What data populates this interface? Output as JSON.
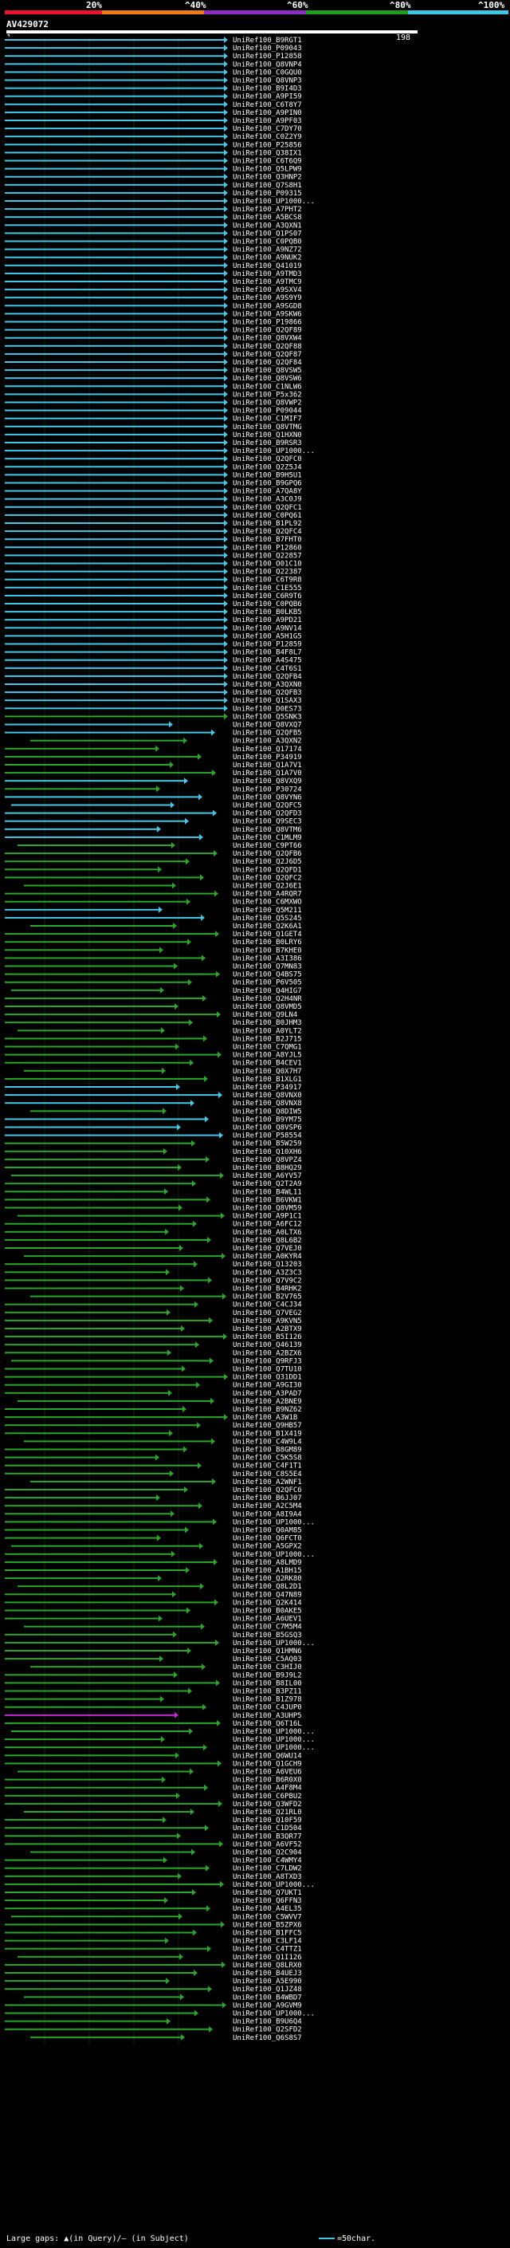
{
  "scale": {
    "labels": [
      "20%",
      "^40%",
      "^60%",
      "^80%",
      "^100%"
    ],
    "colors": [
      "#e8152b",
      "#ee7d16",
      "#8c2ec4",
      "#1ea01e",
      "#3cc8e6"
    ]
  },
  "query": {
    "title": "AV429072",
    "start": "1",
    "end": "198"
  },
  "colors": {
    "blue": "#44c8e8",
    "green": "#2aa62a",
    "magenta": "#c02cd0",
    "bg_band": "#1a1a6e"
  },
  "legend": {
    "left_text": "Large gaps: ▲(in Query)/– (in Subject)",
    "right_text": "=50char."
  },
  "hits": [
    {
      "label": "UniRef100_B9RGT1",
      "c": "b"
    },
    {
      "label": "UniRef100_P09043",
      "c": "b"
    },
    {
      "label": "UniRef100_P12858",
      "c": "b"
    },
    {
      "label": "UniRef100_Q8VNP4",
      "c": "b"
    },
    {
      "label": "UniRef100_C0GQU0",
      "c": "b"
    },
    {
      "label": "UniRef100_Q8VNP3",
      "c": "b"
    },
    {
      "label": "UniRef100_B9I4D3",
      "c": "b"
    },
    {
      "label": "UniRef100_A9PI59",
      "c": "b"
    },
    {
      "label": "UniRef100_C6T8Y7",
      "c": "b"
    },
    {
      "label": "UniRef100_A9PIN0",
      "c": "b"
    },
    {
      "label": "UniRef100_A9PF03",
      "c": "b"
    },
    {
      "label": "UniRef100_C7DY70",
      "c": "b"
    },
    {
      "label": "UniRef100_C0Z2Y9",
      "c": "b"
    },
    {
      "label": "UniRef100_P25856",
      "c": "b"
    },
    {
      "label": "UniRef100_Q38IX1",
      "c": "b"
    },
    {
      "label": "UniRef100_C6T6Q9",
      "c": "b"
    },
    {
      "label": "UniRef100_Q5LPW9",
      "c": "b"
    },
    {
      "label": "UniRef100_Q3HNP2",
      "c": "b"
    },
    {
      "label": "UniRef100_Q7S8H1",
      "c": "b"
    },
    {
      "label": "UniRef100_P09315",
      "c": "b"
    },
    {
      "label": "UniRef100_UP1000...",
      "c": "b"
    },
    {
      "label": "UniRef100_A7PHT2",
      "c": "b"
    },
    {
      "label": "UniRef100_A5BCS8",
      "c": "b"
    },
    {
      "label": "UniRef100_A3QXN1",
      "c": "b"
    },
    {
      "label": "UniRef100_Q1PS07",
      "c": "b"
    },
    {
      "label": "UniRef100_C0PQB0",
      "c": "b"
    },
    {
      "label": "UniRef100_A9NZ72",
      "c": "b"
    },
    {
      "label": "UniRef100_A9NUK2",
      "c": "b"
    },
    {
      "label": "UniRef100_Q41019",
      "c": "b"
    },
    {
      "label": "UniRef100_A9TMD3",
      "c": "b"
    },
    {
      "label": "UniRef100_A9TMC9",
      "c": "b"
    },
    {
      "label": "UniRef100_A9SXV4",
      "c": "b"
    },
    {
      "label": "UniRef100_A9S9Y9",
      "c": "b"
    },
    {
      "label": "UniRef100_A9SGD8",
      "c": "b"
    },
    {
      "label": "UniRef100_A9SKW6",
      "c": "b"
    },
    {
      "label": "UniRef100_P19866",
      "c": "b"
    },
    {
      "label": "UniRef100_Q2QF89",
      "c": "b"
    },
    {
      "label": "UniRef100_Q8VXW4",
      "c": "b"
    },
    {
      "label": "UniRef100_Q2QF88",
      "c": "b"
    },
    {
      "label": "UniRef100_Q2QF87",
      "c": "b"
    },
    {
      "label": "UniRef100_Q2QF84",
      "c": "b"
    },
    {
      "label": "UniRef100_Q8VSW5",
      "c": "b"
    },
    {
      "label": "UniRef100_Q8VSW6",
      "c": "b"
    },
    {
      "label": "UniRef100_C1NLW6",
      "c": "b"
    },
    {
      "label": "UniRef100_P5x362",
      "c": "b"
    },
    {
      "label": "UniRef100_Q8VWP2",
      "c": "b"
    },
    {
      "label": "UniRef100_P09044",
      "c": "b"
    },
    {
      "label": "UniRef100_C1MIF7",
      "c": "b"
    },
    {
      "label": "UniRef100_Q8VTMG",
      "c": "b"
    },
    {
      "label": "UniRef100_Q1HXN0",
      "c": "b"
    },
    {
      "label": "UniRef100_B9RSR3",
      "c": "b"
    },
    {
      "label": "UniRef100_UP1000...",
      "c": "b"
    },
    {
      "label": "UniRef100_Q2QFC0",
      "c": "b"
    },
    {
      "label": "UniRef100_Q2Z5J4",
      "c": "b"
    },
    {
      "label": "UniRef100_B9H5U1",
      "c": "b"
    },
    {
      "label": "UniRef100_B9GPQ6",
      "c": "b"
    },
    {
      "label": "UniRef100_A7QA8Y",
      "c": "b"
    },
    {
      "label": "UniRef100_A3C0J9",
      "c": "b"
    },
    {
      "label": "UniRef100_Q2QFC1",
      "c": "b"
    },
    {
      "label": "UniRef100_C0PQ61",
      "c": "b"
    },
    {
      "label": "UniRef100_B1PL92",
      "c": "b"
    },
    {
      "label": "UniRef100_Q2QFC4",
      "c": "b"
    },
    {
      "label": "UniRef100_B7FHT0",
      "c": "b"
    },
    {
      "label": "UniRef100_P12860",
      "c": "b"
    },
    {
      "label": "UniRef100_Q22857",
      "c": "b"
    },
    {
      "label": "UniRef100_O01C10",
      "c": "b"
    },
    {
      "label": "UniRef100_Q22387",
      "c": "b"
    },
    {
      "label": "UniRef100_C6T9R8",
      "c": "b"
    },
    {
      "label": "UniRef100_C1E555",
      "c": "b"
    },
    {
      "label": "UniRef100_C6R9T6",
      "c": "b"
    },
    {
      "label": "UniRef100_C0PQB6",
      "c": "b"
    },
    {
      "label": "UniRef100_B0LKB5",
      "c": "b"
    },
    {
      "label": "UniRef100_A9PD21",
      "c": "b"
    },
    {
      "label": "UniRef100_A9NV14",
      "c": "b"
    },
    {
      "label": "UniRef100_A5H1G5",
      "c": "b"
    },
    {
      "label": "UniRef100_P12859",
      "c": "b"
    },
    {
      "label": "UniRef100_B4F8L7",
      "c": "b"
    },
    {
      "label": "UniRef100_A4S475",
      "c": "b"
    },
    {
      "label": "UniRef100_C4T6S1",
      "c": "b"
    },
    {
      "label": "UniRef100_Q2QFB4",
      "c": "b"
    },
    {
      "label": "UniRef100_A3QXN0",
      "c": "b"
    },
    {
      "label": "UniRef100_Q2QFB3",
      "c": "b"
    },
    {
      "label": "UniRef100_Q1SAX3",
      "c": "b"
    },
    {
      "label": "UniRef100_D0ES73",
      "c": "b"
    },
    {
      "label": "UniRef100_Q5SNK3",
      "c": "g"
    },
    {
      "label": "UniRef100_Q8VXQ7",
      "c": "b"
    },
    {
      "label": "UniRef100_Q2QFB5",
      "c": "b"
    },
    {
      "label": "UniRef100_A3QXN2",
      "c": "g"
    },
    {
      "label": "UniRef100_Q17174",
      "c": "g"
    },
    {
      "label": "UniRef100_P34919",
      "c": "g"
    },
    {
      "label": "UniRef100_Q1A7V1",
      "c": "g"
    },
    {
      "label": "UniRef100_Q1A7V0",
      "c": "g"
    },
    {
      "label": "UniRef100_Q8VXQ9",
      "c": "b"
    },
    {
      "label": "UniRef100_P30724",
      "c": "g"
    },
    {
      "label": "UniRef100_Q8VYN6",
      "c": "b"
    },
    {
      "label": "UniRef100_Q2QFC5",
      "c": "b"
    },
    {
      "label": "UniRef100_Q2QFD3",
      "c": "b"
    },
    {
      "label": "UniRef100_Q9SEC3",
      "c": "b"
    },
    {
      "label": "UniRef100_Q8VTM6",
      "c": "b"
    },
    {
      "label": "UniRef100_C1MLM9",
      "c": "b"
    },
    {
      "label": "UniRef100_C9PT66",
      "c": "g"
    },
    {
      "label": "UniRef100_Q2QFB6",
      "c": "g"
    },
    {
      "label": "UniRef100_Q2J6D5",
      "c": "g"
    },
    {
      "label": "UniRef100_Q2QFD1",
      "c": "g"
    },
    {
      "label": "UniRef100_Q2QFC2",
      "c": "g"
    },
    {
      "label": "UniRef100_Q2J6E1",
      "c": "g"
    },
    {
      "label": "UniRef100_A4RQR7",
      "c": "g"
    },
    {
      "label": "UniRef100_C6MXWO",
      "c": "g"
    },
    {
      "label": "UniRef100_Q5M211",
      "c": "b"
    },
    {
      "label": "UniRef100_Q5S245",
      "c": "b"
    },
    {
      "label": "UniRef100_Q2K6A1",
      "c": "g"
    },
    {
      "label": "UniRef100_Q1GET4",
      "c": "g"
    },
    {
      "label": "UniRef100_B0LRY6",
      "c": "g"
    },
    {
      "label": "UniRef100_B7KHE0",
      "c": "g"
    },
    {
      "label": "UniRef100_A3I386",
      "c": "g"
    },
    {
      "label": "UniRef100_Q7MN83",
      "c": "g"
    },
    {
      "label": "UniRef100_Q4BS75",
      "c": "g"
    },
    {
      "label": "UniRef100_P6V505",
      "c": "g"
    },
    {
      "label": "UniRef100_Q4HIG7",
      "c": "g"
    },
    {
      "label": "UniRef100_Q2H4NR",
      "c": "g"
    },
    {
      "label": "UniRef100_Q8VMD5",
      "c": "g"
    },
    {
      "label": "UniRef100_Q9LN4",
      "c": "g"
    },
    {
      "label": "UniRef100_B0JHM3",
      "c": "g"
    },
    {
      "label": "UniRef100_A0YLT2",
      "c": "g"
    },
    {
      "label": "UniRef100_B2J715",
      "c": "g"
    },
    {
      "label": "UniRef100_C7QMG1",
      "c": "g"
    },
    {
      "label": "UniRef100_A8YJL5",
      "c": "g"
    },
    {
      "label": "UniRef100_B4CEV1",
      "c": "g"
    },
    {
      "label": "UniRef100_Q0X7H7",
      "c": "g"
    },
    {
      "label": "UniRef100_B1XLG1",
      "c": "g"
    },
    {
      "label": "UniRef100_P34917",
      "c": "b"
    },
    {
      "label": "UniRef100_Q8VNX0",
      "c": "b"
    },
    {
      "label": "UniRef100_Q8VNX8",
      "c": "b"
    },
    {
      "label": "UniRef100_Q8DIW5",
      "c": "g"
    },
    {
      "label": "UniRef100_B9YM75",
      "c": "b"
    },
    {
      "label": "UniRef100_Q8VSP6",
      "c": "b"
    },
    {
      "label": "UniRef100_P58554",
      "c": "b"
    },
    {
      "label": "UniRef100_B5W259",
      "c": "g"
    },
    {
      "label": "UniRef100_Q10XH6",
      "c": "g"
    },
    {
      "label": "UniRef100_Q8VPZ4",
      "c": "g"
    },
    {
      "label": "UniRef100_B8HQ29",
      "c": "g"
    },
    {
      "label": "UniRef100_A6YV57",
      "c": "g"
    },
    {
      "label": "UniRef100_Q2T2A9",
      "c": "g"
    },
    {
      "label": "UniRef100_B4WL11",
      "c": "g"
    },
    {
      "label": "UniRef100_B6VKW1",
      "c": "g"
    },
    {
      "label": "UniRef100_Q8VM59",
      "c": "g"
    },
    {
      "label": "UniRef100_A9P1C1",
      "c": "g"
    },
    {
      "label": "UniRef100_A6FC12",
      "c": "g"
    },
    {
      "label": "UniRef100_A0LTX6",
      "c": "g"
    },
    {
      "label": "UniRef100_Q8L6B2",
      "c": "g"
    },
    {
      "label": "UniRef100_Q7VEJ0",
      "c": "g"
    },
    {
      "label": "UniRef100_A0KYR4",
      "c": "g"
    },
    {
      "label": "UniRef100_Q13203",
      "c": "g"
    },
    {
      "label": "UniRef100_A3Z3C3",
      "c": "g"
    },
    {
      "label": "UniRef100_Q7V9C2",
      "c": "g"
    },
    {
      "label": "UniRef100_B4RHK2",
      "c": "g"
    },
    {
      "label": "UniRef100_B2V765",
      "c": "g"
    },
    {
      "label": "UniRef100_C4CJ34",
      "c": "g"
    },
    {
      "label": "UniRef100_Q7VEG2",
      "c": "g"
    },
    {
      "label": "UniRef100_A9KVN5",
      "c": "g"
    },
    {
      "label": "UniRef100_A2BTX9",
      "c": "g"
    },
    {
      "label": "UniRef100_B5I126",
      "c": "g"
    },
    {
      "label": "UniRef100_Q46139",
      "c": "g"
    },
    {
      "label": "UniRef100_A2BZX6",
      "c": "g"
    },
    {
      "label": "UniRef100_Q9RFJ3",
      "c": "g"
    },
    {
      "label": "UniRef100_Q7TU10",
      "c": "g"
    },
    {
      "label": "UniRef100_Q31DD1",
      "c": "g"
    },
    {
      "label": "UniRef100_A9GI30",
      "c": "g"
    },
    {
      "label": "UniRef100_A3PAD7",
      "c": "g"
    },
    {
      "label": "UniRef100_A2BNE9",
      "c": "g"
    },
    {
      "label": "UniRef100_B9NZ62",
      "c": "g"
    },
    {
      "label": "UniRef100_A3W1B",
      "c": "g"
    },
    {
      "label": "UniRef100_Q9HB57",
      "c": "g"
    },
    {
      "label": "UniRef100_B1X419",
      "c": "g"
    },
    {
      "label": "UniRef100_C4W9L4",
      "c": "g"
    },
    {
      "label": "UniRef100_B8GM89",
      "c": "g"
    },
    {
      "label": "UniRef100_C5K5S8",
      "c": "g"
    },
    {
      "label": "UniRef100_C4F1T1",
      "c": "g"
    },
    {
      "label": "UniRef100_C8S5E4",
      "c": "g"
    },
    {
      "label": "UniRef100_A2WNF1",
      "c": "g"
    },
    {
      "label": "UniRef100_Q2QFC6",
      "c": "g"
    },
    {
      "label": "UniRef100_B6JJ07",
      "c": "g"
    },
    {
      "label": "UniRef100_A2C5M4",
      "c": "g"
    },
    {
      "label": "UniRef100_A8I9A4",
      "c": "g"
    },
    {
      "label": "UniRef100_UP1000...",
      "c": "g"
    },
    {
      "label": "UniRef100_Q0AM85",
      "c": "g"
    },
    {
      "label": "UniRef100_Q6FCT0",
      "c": "g"
    },
    {
      "label": "UniRef100_A5GPX2",
      "c": "g"
    },
    {
      "label": "UniRef100_UP1000...",
      "c": "g"
    },
    {
      "label": "UniRef100_A8LMD9",
      "c": "g"
    },
    {
      "label": "UniRef100_A1BH15",
      "c": "g"
    },
    {
      "label": "UniRef100_Q2RK80",
      "c": "g"
    },
    {
      "label": "UniRef100_Q8L2D1",
      "c": "g"
    },
    {
      "label": "UniRef100_Q47N89",
      "c": "g"
    },
    {
      "label": "UniRef100_Q2K414",
      "c": "g"
    },
    {
      "label": "UniRef100_B0AKE5",
      "c": "g"
    },
    {
      "label": "UniRef100_A6UEV1",
      "c": "g"
    },
    {
      "label": "UniRef100_C7M5M4",
      "c": "g"
    },
    {
      "label": "UniRef100_B5GSQ3",
      "c": "g"
    },
    {
      "label": "UniRef100_UP1000...",
      "c": "g"
    },
    {
      "label": "UniRef100_Q1HMN6",
      "c": "g"
    },
    {
      "label": "UniRef100_C5AQ03",
      "c": "g"
    },
    {
      "label": "UniRef100_C3HIJ0",
      "c": "g"
    },
    {
      "label": "UniRef100_B9J9L2",
      "c": "g"
    },
    {
      "label": "UniRef100_B8IL00",
      "c": "g"
    },
    {
      "label": "UniRef100_B3PZ11",
      "c": "g"
    },
    {
      "label": "UniRef100_B1Z978",
      "c": "g"
    },
    {
      "label": "UniRef100_C4JUP0",
      "c": "g"
    },
    {
      "label": "UniRef100_A3UHP5",
      "c": "m"
    },
    {
      "label": "UniRef100_Q6T16L",
      "c": "g"
    },
    {
      "label": "UniRef100_UP1000...",
      "c": "g"
    },
    {
      "label": "UniRef100_UP1000...",
      "c": "g"
    },
    {
      "label": "UniRef100_UP1000...",
      "c": "g"
    },
    {
      "label": "UniRef100_Q6WU14",
      "c": "g"
    },
    {
      "label": "UniRef100_Q1GCH9",
      "c": "g"
    },
    {
      "label": "UniRef100_A6VEU6",
      "c": "g"
    },
    {
      "label": "UniRef100_B6R0X0",
      "c": "g"
    },
    {
      "label": "UniRef100_A4F8M4",
      "c": "g"
    },
    {
      "label": "UniRef100_C6PBU2",
      "c": "g"
    },
    {
      "label": "UniRef100_Q3WFD2",
      "c": "g"
    },
    {
      "label": "UniRef100_Q21RL0",
      "c": "g"
    },
    {
      "label": "UniRef100_Q10F59",
      "c": "g"
    },
    {
      "label": "UniRef100_C1D504",
      "c": "g"
    },
    {
      "label": "UniRef100_B3QR77",
      "c": "g"
    },
    {
      "label": "UniRef100_A6VF52",
      "c": "g"
    },
    {
      "label": "UniRef100_Q2C904",
      "c": "g"
    },
    {
      "label": "UniRef100_C4WMY4",
      "c": "g"
    },
    {
      "label": "UniRef100_C7LDW2",
      "c": "g"
    },
    {
      "label": "UniRef100_A8TXD3",
      "c": "g"
    },
    {
      "label": "UniRef100_UP1000...",
      "c": "g"
    },
    {
      "label": "UniRef100_Q7UKT1",
      "c": "g"
    },
    {
      "label": "UniRef100_Q6FFN3",
      "c": "g"
    },
    {
      "label": "UniRef100_A4EL35",
      "c": "g"
    },
    {
      "label": "UniRef100_C5WVV7",
      "c": "g"
    },
    {
      "label": "UniRef100_B5ZPX6",
      "c": "g"
    },
    {
      "label": "UniRef100_B1FFC5",
      "c": "g"
    },
    {
      "label": "UniRef100_C3LF14",
      "c": "g"
    },
    {
      "label": "UniRef100_C4TTZ1",
      "c": "g"
    },
    {
      "label": "UniRef100_Q1I126",
      "c": "g"
    },
    {
      "label": "UniRef100_Q8LRX0",
      "c": "g"
    },
    {
      "label": "UniRef100_B4UEJ3",
      "c": "g"
    },
    {
      "label": "UniRef100_A5E990",
      "c": "g"
    },
    {
      "label": "UniRef100_Q1JZ48",
      "c": "g"
    },
    {
      "label": "UniRef100_B4WBD7",
      "c": "g"
    },
    {
      "label": "UniRef100_A9GVM9",
      "c": "g"
    },
    {
      "label": "UniRef100_UP1000...",
      "c": "g"
    },
    {
      "label": "UniRef100_B9U6Q4",
      "c": "g"
    },
    {
      "label": "UniRef100_Q2SFD2",
      "c": "g"
    },
    {
      "label": "UniRef100_Q6S8S7",
      "c": "g"
    }
  ]
}
